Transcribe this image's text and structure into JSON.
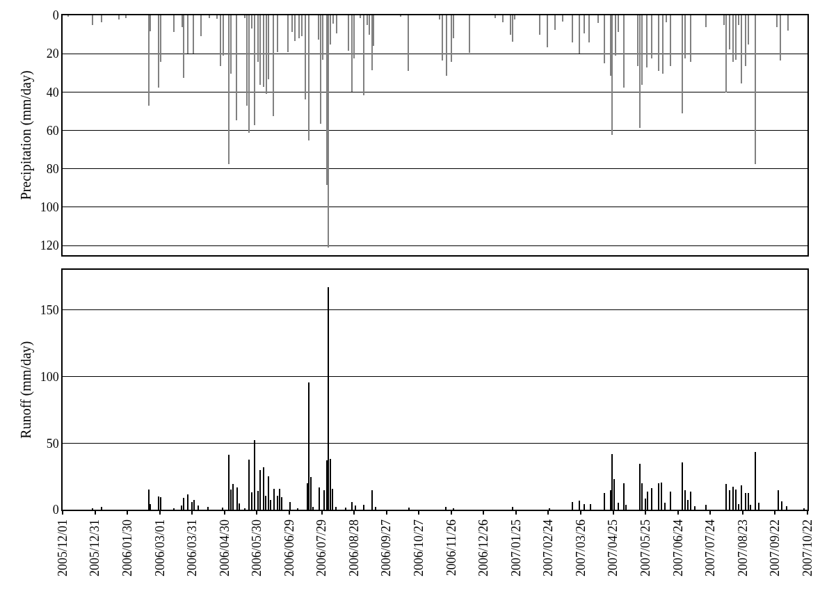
{
  "chart_data": [
    {
      "type": "bar",
      "ylabel": "Precipitation (mm/day)",
      "tick_labels": "y",
      "grid": "y",
      "xlim": [
        "2005-12-01",
        "2007-10-22"
      ],
      "ylim": [
        125,
        0
      ],
      "yticks": [
        0,
        20,
        40,
        60,
        80,
        100,
        120
      ],
      "x": [
        "2005-12-06",
        "2005-12-29",
        "2006-01-06",
        "2006-01-22",
        "2006-01-29",
        "2006-02-19",
        "2006-02-20",
        "2006-02-28",
        "2006-03-02",
        "2006-03-14",
        "2006-03-22",
        "2006-03-23",
        "2006-03-27",
        "2006-04-01",
        "2006-04-08",
        "2006-04-16",
        "2006-04-23",
        "2006-04-26",
        "2006-04-29",
        "2006-05-04",
        "2006-05-06",
        "2006-05-11",
        "2006-05-19",
        "2006-05-21",
        "2006-05-23",
        "2006-05-25",
        "2006-05-28",
        "2006-05-31",
        "2006-06-02",
        "2006-06-05",
        "2006-06-08",
        "2006-06-10",
        "2006-06-14",
        "2006-06-18",
        "2006-06-28",
        "2006-07-02",
        "2006-07-04",
        "2006-07-08",
        "2006-07-11",
        "2006-07-14",
        "2006-07-17",
        "2006-07-26",
        "2006-07-28",
        "2006-07-30",
        "2006-08-03",
        "2006-08-04",
        "2006-08-06",
        "2006-08-09",
        "2006-08-12",
        "2006-08-23",
        "2006-08-26",
        "2006-08-28",
        "2006-09-03",
        "2006-09-06",
        "2006-09-09",
        "2006-09-11",
        "2006-09-14",
        "2006-09-15",
        "2006-10-10",
        "2006-10-17",
        "2006-11-15",
        "2006-11-18",
        "2006-11-22",
        "2006-11-26",
        "2006-11-28",
        "2006-12-13",
        "2007-01-06",
        "2007-01-13",
        "2007-01-20",
        "2007-01-22",
        "2007-01-24",
        "2007-02-16",
        "2007-02-23",
        "2007-03-02",
        "2007-03-09",
        "2007-03-18",
        "2007-03-25",
        "2007-03-29",
        "2007-04-03",
        "2007-04-11",
        "2007-04-17",
        "2007-04-23",
        "2007-04-24",
        "2007-04-27",
        "2007-04-30",
        "2007-05-05",
        "2007-05-18",
        "2007-05-20",
        "2007-05-22",
        "2007-05-26",
        "2007-05-31",
        "2007-06-06",
        "2007-06-10",
        "2007-06-13",
        "2007-06-17",
        "2007-06-28",
        "2007-07-01",
        "2007-07-06",
        "2007-07-20",
        "2007-08-06",
        "2007-08-08",
        "2007-08-11",
        "2007-08-14",
        "2007-08-17",
        "2007-08-19",
        "2007-08-22",
        "2007-08-26",
        "2007-08-28",
        "2007-09-04",
        "2007-09-24",
        "2007-09-27",
        "2007-10-04"
      ],
      "series": [
        {
          "color": "#808080",
          "values": [
            0.5,
            5.2,
            3.6,
            2.3,
            1.3,
            47.2,
            8.2,
            37.7,
            24.4,
            8.6,
            6,
            32.5,
            19.9,
            19.9,
            10.8,
            1.3,
            1.8,
            26.4,
            21.2,
            77.7,
            30.5,
            54.6,
            1.3,
            47.2,
            61.2,
            6.9,
            57.3,
            24.4,
            36.1,
            37.4,
            41,
            33.3,
            52.4,
            19.2,
            19.2,
            8.8,
            13.4,
            12.1,
            10.8,
            43.9,
            65.4,
            12.7,
            56.7,
            23.1,
            88.4,
            121,
            15.3,
            4.3,
            9.5,
            18.6,
            39.8,
            22.5,
            1.3,
            41.6,
            4.9,
            10.1,
            28.6,
            16,
            0.8,
            29,
            2.3,
            23.4,
            31.6,
            24.4,
            12.1,
            19.6,
            1.3,
            3.6,
            10.1,
            13.7,
            2.3,
            10.1,
            16.6,
            7.5,
            3.4,
            14,
            19.9,
            9.5,
            14,
            3.9,
            25.1,
            31.6,
            62.5,
            21.2,
            8.8,
            37.7,
            26.4,
            58.6,
            36.4,
            27.3,
            22.5,
            29,
            30.3,
            3.6,
            26.4,
            51.1,
            22.5,
            24.2,
            6.2,
            4.9,
            40.3,
            17.9,
            24.2,
            23.1,
            4.9,
            35.5,
            26.4,
            15.3,
            77.7,
            6,
            23.4,
            7.8
          ]
        }
      ]
    },
    {
      "type": "bar",
      "ylabel": "Runoff (mm/day)",
      "grid": "y",
      "xlim": [
        "2005-12-01",
        "2007-10-22"
      ],
      "ylim": [
        0,
        180
      ],
      "yticks": [
        0,
        50,
        100,
        150
      ],
      "xticks": [
        {
          "value": "2005-12-01",
          "label": "2005/12/01"
        },
        {
          "value": "2005-12-31",
          "label": "2005/12/31"
        },
        {
          "value": "2006-01-30",
          "label": "2006/01/30"
        },
        {
          "value": "2006-03-01",
          "label": "2006/03/01"
        },
        {
          "value": "2006-03-31",
          "label": "2006/03/31"
        },
        {
          "value": "2006-04-30",
          "label": "2006/04/30"
        },
        {
          "value": "2006-05-30",
          "label": "2006/05/30"
        },
        {
          "value": "2006-06-29",
          "label": "2006/06/29"
        },
        {
          "value": "2006-07-29",
          "label": "2006/07/29"
        },
        {
          "value": "2006-08-28",
          "label": "2006/08/28"
        },
        {
          "value": "2006-09-27",
          "label": "2006/09/27"
        },
        {
          "value": "2006-10-27",
          "label": "2006/10/27"
        },
        {
          "value": "2006-11-26",
          "label": "2006/11/26"
        },
        {
          "value": "2006-12-26",
          "label": "2006/12/26"
        },
        {
          "value": "2007-01-25",
          "label": "2007/01/25"
        },
        {
          "value": "2007-02-24",
          "label": "2007/02/24"
        },
        {
          "value": "2007-03-26",
          "label": "2007/03/26"
        },
        {
          "value": "2007-04-25",
          "label": "2007/04/25"
        },
        {
          "value": "2007-05-25",
          "label": "2007/05/25"
        },
        {
          "value": "2007-06-24",
          "label": "2007/06/24"
        },
        {
          "value": "2007-07-24",
          "label": "2007/07/24"
        },
        {
          "value": "2007-08-23",
          "label": "2007/08/23"
        },
        {
          "value": "2007-09-22",
          "label": "2007/09/22"
        },
        {
          "value": "2007-10-22",
          "label": "2007/10/22"
        }
      ],
      "x": [
        "2005-12-29",
        "2006-01-06",
        "2006-02-19",
        "2006-02-20",
        "2006-02-28",
        "2006-03-02",
        "2006-03-14",
        "2006-03-21",
        "2006-03-23",
        "2006-03-27",
        "2006-03-31",
        "2006-04-02",
        "2006-04-06",
        "2006-04-15",
        "2006-04-28",
        "2006-05-04",
        "2006-05-06",
        "2006-05-08",
        "2006-05-12",
        "2006-05-14",
        "2006-05-19",
        "2006-05-23",
        "2006-05-25",
        "2006-05-28",
        "2006-05-31",
        "2006-06-02",
        "2006-06-05",
        "2006-06-07",
        "2006-06-10",
        "2006-06-12",
        "2006-06-15",
        "2006-06-18",
        "2006-06-20",
        "2006-06-22",
        "2006-06-30",
        "2006-07-07",
        "2006-07-16",
        "2006-07-17",
        "2006-07-19",
        "2006-07-21",
        "2006-07-27",
        "2006-07-31",
        "2006-08-03",
        "2006-08-04",
        "2006-08-06",
        "2006-08-08",
        "2006-08-11",
        "2006-08-20",
        "2006-08-26",
        "2006-08-29",
        "2006-09-06",
        "2006-09-14",
        "2006-09-17",
        "2006-10-18",
        "2006-11-21",
        "2006-11-28",
        "2007-01-22",
        "2007-02-25",
        "2007-03-18",
        "2007-03-25",
        "2007-03-29",
        "2007-04-04",
        "2007-04-17",
        "2007-04-23",
        "2007-04-24",
        "2007-04-26",
        "2007-04-30",
        "2007-05-05",
        "2007-05-07",
        "2007-05-20",
        "2007-05-22",
        "2007-05-25",
        "2007-05-27",
        "2007-05-31",
        "2007-06-06",
        "2007-06-09",
        "2007-06-12",
        "2007-06-17",
        "2007-06-28",
        "2007-07-01",
        "2007-07-03",
        "2007-07-06",
        "2007-07-10",
        "2007-07-20",
        "2007-08-08",
        "2007-08-11",
        "2007-08-14",
        "2007-08-17",
        "2007-08-19",
        "2007-08-22",
        "2007-08-26",
        "2007-08-28",
        "2007-08-30",
        "2007-09-04",
        "2007-09-07",
        "2007-09-25",
        "2007-09-28",
        "2007-10-03",
        "2007-10-19"
      ],
      "series": [
        {
          "color": "#000000",
          "values": [
            1,
            1.9,
            15.3,
            4.3,
            9.7,
            9.3,
            1,
            3.2,
            8.9,
            11.2,
            5.6,
            7.4,
            2.8,
            1.9,
            1.5,
            41,
            14.9,
            19.2,
            16.4,
            4.7,
            0.6,
            37.6,
            13,
            52.1,
            14,
            29.8,
            31.7,
            10.2,
            24.8,
            7.4,
            15.8,
            10.2,
            15.8,
            9.3,
            5.6,
            0.6,
            19.6,
            95.3,
            24.2,
            1.9,
            16.4,
            14.5,
            37.2,
            167,
            38.2,
            15.8,
            1.9,
            1.3,
            5.6,
            2.8,
            3.7,
            14.5,
            1.9,
            1.5,
            1.9,
            0.9,
            1.9,
            1.1,
            5.8,
            6.6,
            3.9,
            4.3,
            12.4,
            14.3,
            41.9,
            22.7,
            4.9,
            19.7,
            3.8,
            34.4,
            19.7,
            8.1,
            13.7,
            16,
            19.7,
            20.3,
            4.9,
            13.3,
            35.3,
            14.3,
            7.1,
            13.7,
            2.4,
            3.8,
            19,
            14.3,
            17.1,
            15.2,
            4.3,
            18,
            12.4,
            12.4,
            3.4,
            43.4,
            4.9,
            14.7,
            6.2,
            2.4,
            0.9
          ]
        }
      ]
    }
  ]
}
